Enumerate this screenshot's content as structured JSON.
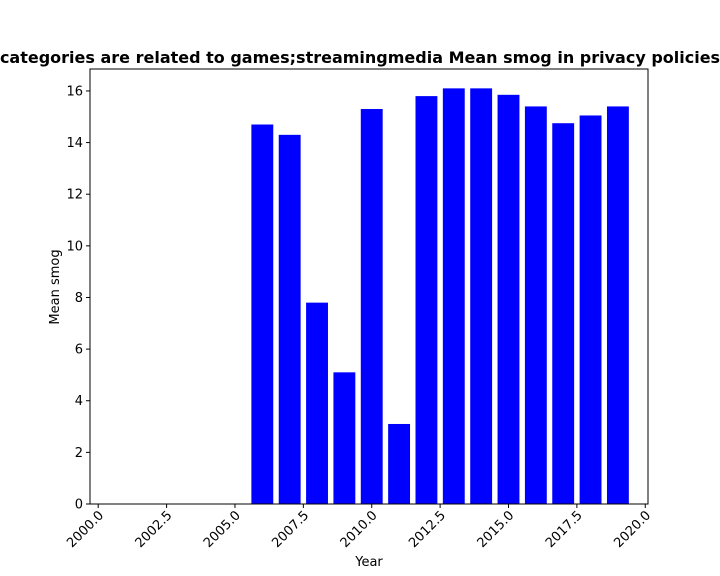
{
  "chart_data": {
    "type": "bar",
    "title": "categories are related to games;streamingmedia Mean smog in privacy policies",
    "xlabel": "Year",
    "ylabel": "Mean smog",
    "x": [
      2006,
      2007,
      2008,
      2009,
      2010,
      2011,
      2012,
      2013,
      2014,
      2015,
      2016,
      2017,
      2018,
      2019
    ],
    "values": [
      14.7,
      14.3,
      7.8,
      5.1,
      15.3,
      3.1,
      15.8,
      16.1,
      16.1,
      15.85,
      15.4,
      14.75,
      15.05,
      15.4
    ],
    "xlim": [
      1999.7,
      2020.1
    ],
    "ylim": [
      0,
      16.85
    ],
    "xticks": [
      2000.0,
      2002.5,
      2005.0,
      2007.5,
      2010.0,
      2012.5,
      2015.0,
      2017.5,
      2020.0
    ],
    "xtick_labels": [
      "2000.0",
      "2002.5",
      "2005.0",
      "2007.5",
      "2010.0",
      "2012.5",
      "2015.0",
      "2017.5",
      "2020.0"
    ],
    "yticks": [
      0,
      2,
      4,
      6,
      8,
      10,
      12,
      14,
      16
    ],
    "ytick_labels": [
      "0",
      "2",
      "4",
      "6",
      "8",
      "10",
      "12",
      "14",
      "16"
    ],
    "bar_color": "#0000ff",
    "grid": false,
    "legend": "none"
  }
}
